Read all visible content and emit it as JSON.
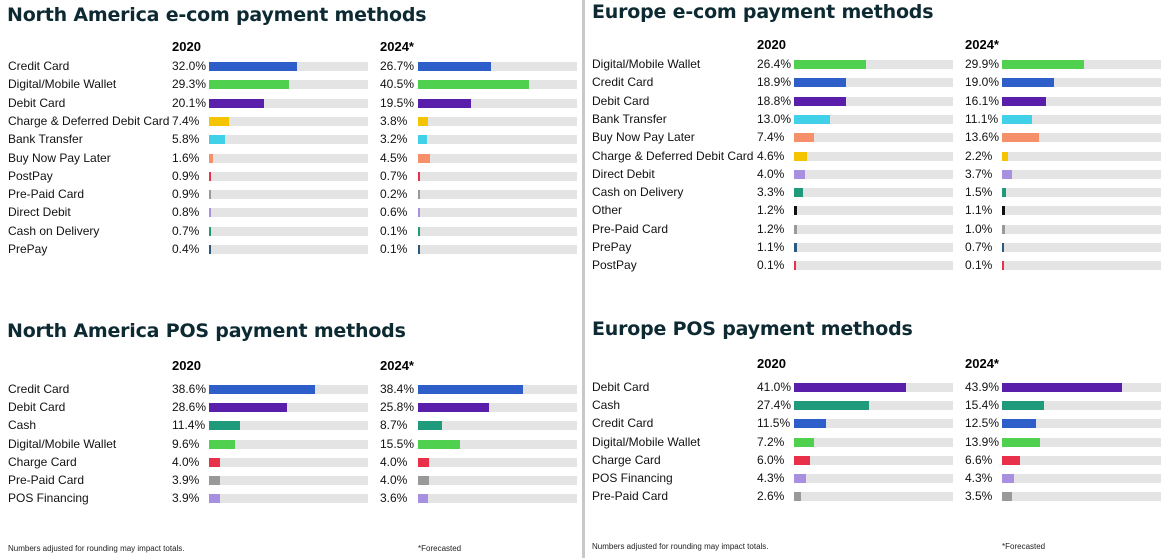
{
  "charts": [
    {
      "title": "North America e-com payment methods",
      "year_a": "2020",
      "year_b": "2024*",
      "rows": [
        {
          "label": "Credit Card",
          "a": 32.0,
          "b": 26.7,
          "color": "#2e5ec9"
        },
        {
          "label": "Digital/Mobile Wallet",
          "a": 29.3,
          "b": 40.5,
          "color": "#4fd04f"
        },
        {
          "label": "Debit Card",
          "a": 20.1,
          "b": 19.5,
          "color": "#5a1faa"
        },
        {
          "label": "Charge & Deferred Debit Card",
          "a": 7.4,
          "b": 3.8,
          "color": "#f5c400"
        },
        {
          "label": "Bank Transfer",
          "a": 5.8,
          "b": 3.2,
          "color": "#40d0e8"
        },
        {
          "label": "Buy Now Pay Later",
          "a": 1.6,
          "b": 4.5,
          "color": "#f5906a"
        },
        {
          "label": "PostPay",
          "a": 0.9,
          "b": 0.7,
          "color": "#e8304a"
        },
        {
          "label": "Pre-Paid Card",
          "a": 0.9,
          "b": 0.2,
          "color": "#999999"
        },
        {
          "label": "Direct Debit",
          "a": 0.8,
          "b": 0.6,
          "color": "#a890e0"
        },
        {
          "label": "Cash on Delivery",
          "a": 0.7,
          "b": 0.1,
          "color": "#1f9a7a"
        },
        {
          "label": "PrePay",
          "a": 0.4,
          "b": 0.1,
          "color": "#2a5a80"
        }
      ]
    },
    {
      "title": "North America POS payment methods",
      "year_a": "2020",
      "year_b": "2024*",
      "rows": [
        {
          "label": "Credit Card",
          "a": 38.6,
          "b": 38.4,
          "color": "#2e5ec9"
        },
        {
          "label": "Debit Card",
          "a": 28.6,
          "b": 25.8,
          "color": "#5a1faa"
        },
        {
          "label": "Cash",
          "a": 11.4,
          "b": 8.7,
          "color": "#1f9a7a"
        },
        {
          "label": "Digital/Mobile Wallet",
          "a": 9.6,
          "b": 15.5,
          "color": "#4fd04f"
        },
        {
          "label": "Charge Card",
          "a": 4.0,
          "b": 4.0,
          "color": "#e8304a"
        },
        {
          "label": "Pre-Paid Card",
          "a": 3.9,
          "b": 4.0,
          "color": "#999999"
        },
        {
          "label": "POS Financing",
          "a": 3.9,
          "b": 3.6,
          "color": "#a890e0"
        }
      ]
    },
    {
      "title": "Europe e-com payment methods",
      "year_a": "2020",
      "year_b": "2024*",
      "rows": [
        {
          "label": "Digital/Mobile Wallet",
          "a": 26.4,
          "b": 29.9,
          "color": "#4fd04f"
        },
        {
          "label": "Credit Card",
          "a": 18.9,
          "b": 19.0,
          "color": "#2e5ec9"
        },
        {
          "label": "Debit Card",
          "a": 18.8,
          "b": 16.1,
          "color": "#5a1faa"
        },
        {
          "label": "Bank Transfer",
          "a": 13.0,
          "b": 11.1,
          "color": "#40d0e8"
        },
        {
          "label": "Buy Now Pay Later",
          "a": 7.4,
          "b": 13.6,
          "color": "#f5906a"
        },
        {
          "label": "Charge & Deferred Debit Card",
          "a": 4.6,
          "b": 2.2,
          "color": "#f5c400"
        },
        {
          "label": "Direct Debit",
          "a": 4.0,
          "b": 3.7,
          "color": "#a890e0"
        },
        {
          "label": "Cash on Delivery",
          "a": 3.3,
          "b": 1.5,
          "color": "#1f9a7a"
        },
        {
          "label": "Other",
          "a": 1.2,
          "b": 1.1,
          "color": "#111111"
        },
        {
          "label": "Pre-Paid Card",
          "a": 1.2,
          "b": 1.0,
          "color": "#999999"
        },
        {
          "label": "PrePay",
          "a": 1.1,
          "b": 0.7,
          "color": "#2a5a80"
        },
        {
          "label": "PostPay",
          "a": 0.1,
          "b": 0.1,
          "color": "#e8304a"
        }
      ]
    },
    {
      "title": "Europe POS payment methods",
      "year_a": "2020",
      "year_b": "2024*",
      "rows": [
        {
          "label": "Debit Card",
          "a": 41.0,
          "b": 43.9,
          "color": "#5a1faa"
        },
        {
          "label": "Cash",
          "a": 27.4,
          "b": 15.4,
          "color": "#1f9a7a"
        },
        {
          "label": "Credit Card",
          "a": 11.5,
          "b": 12.5,
          "color": "#2e5ec9"
        },
        {
          "label": "Digital/Mobile Wallet",
          "a": 7.2,
          "b": 13.9,
          "color": "#4fd04f"
        },
        {
          "label": "Charge Card",
          "a": 6.0,
          "b": 6.6,
          "color": "#e8304a"
        },
        {
          "label": "POS Financing",
          "a": 4.3,
          "b": 4.3,
          "color": "#a890e0"
        },
        {
          "label": "Pre-Paid Card",
          "a": 2.6,
          "b": 3.5,
          "color": "#999999"
        }
      ]
    }
  ],
  "notes": {
    "rounding": "Numbers adjusted for rounding may impact totals.",
    "forecast": "*Forecasted"
  },
  "chart_data": [
    {
      "type": "bar",
      "title": "North America e-com payment methods",
      "categories": [
        "Credit Card",
        "Digital/Mobile Wallet",
        "Debit Card",
        "Charge & Deferred Debit Card",
        "Bank Transfer",
        "Buy Now Pay Later",
        "PostPay",
        "Pre-Paid Card",
        "Direct Debit",
        "Cash on Delivery",
        "PrePay"
      ],
      "series": [
        {
          "name": "2020",
          "values": [
            32.0,
            29.3,
            20.1,
            7.4,
            5.8,
            1.6,
            0.9,
            0.9,
            0.8,
            0.7,
            0.4
          ]
        },
        {
          "name": "2024*",
          "values": [
            26.7,
            40.5,
            19.5,
            3.8,
            3.2,
            4.5,
            0.7,
            0.2,
            0.6,
            0.1,
            0.1
          ]
        }
      ]
    },
    {
      "type": "bar",
      "title": "North America POS payment methods",
      "categories": [
        "Credit Card",
        "Debit Card",
        "Cash",
        "Digital/Mobile Wallet",
        "Charge Card",
        "Pre-Paid Card",
        "POS Financing"
      ],
      "series": [
        {
          "name": "2020",
          "values": [
            38.6,
            28.6,
            11.4,
            9.6,
            4.0,
            3.9,
            3.9
          ]
        },
        {
          "name": "2024*",
          "values": [
            38.4,
            25.8,
            8.7,
            15.5,
            4.0,
            4.0,
            3.6
          ]
        }
      ]
    },
    {
      "type": "bar",
      "title": "Europe e-com payment methods",
      "categories": [
        "Digital/Mobile Wallet",
        "Credit Card",
        "Debit Card",
        "Bank Transfer",
        "Buy Now Pay Later",
        "Charge & Deferred Debit Card",
        "Direct Debit",
        "Cash on Delivery",
        "Other",
        "Pre-Paid Card",
        "PrePay",
        "PostPay"
      ],
      "series": [
        {
          "name": "2020",
          "values": [
            26.4,
            18.9,
            18.8,
            13.0,
            7.4,
            4.6,
            4.0,
            3.3,
            1.2,
            1.2,
            1.1,
            0.1
          ]
        },
        {
          "name": "2024*",
          "values": [
            29.9,
            19.0,
            16.1,
            11.1,
            13.6,
            2.2,
            3.7,
            1.5,
            1.1,
            1.0,
            0.7,
            0.1
          ]
        }
      ]
    },
    {
      "type": "bar",
      "title": "Europe POS payment methods",
      "categories": [
        "Debit Card",
        "Cash",
        "Credit Card",
        "Digital/Mobile Wallet",
        "Charge Card",
        "POS Financing",
        "Pre-Paid Card"
      ],
      "series": [
        {
          "name": "2020",
          "values": [
            41.0,
            27.4,
            11.5,
            7.2,
            6.0,
            4.3,
            2.6
          ]
        },
        {
          "name": "2024*",
          "values": [
            43.9,
            15.4,
            12.5,
            13.9,
            6.6,
            4.3,
            3.5
          ]
        }
      ]
    }
  ]
}
